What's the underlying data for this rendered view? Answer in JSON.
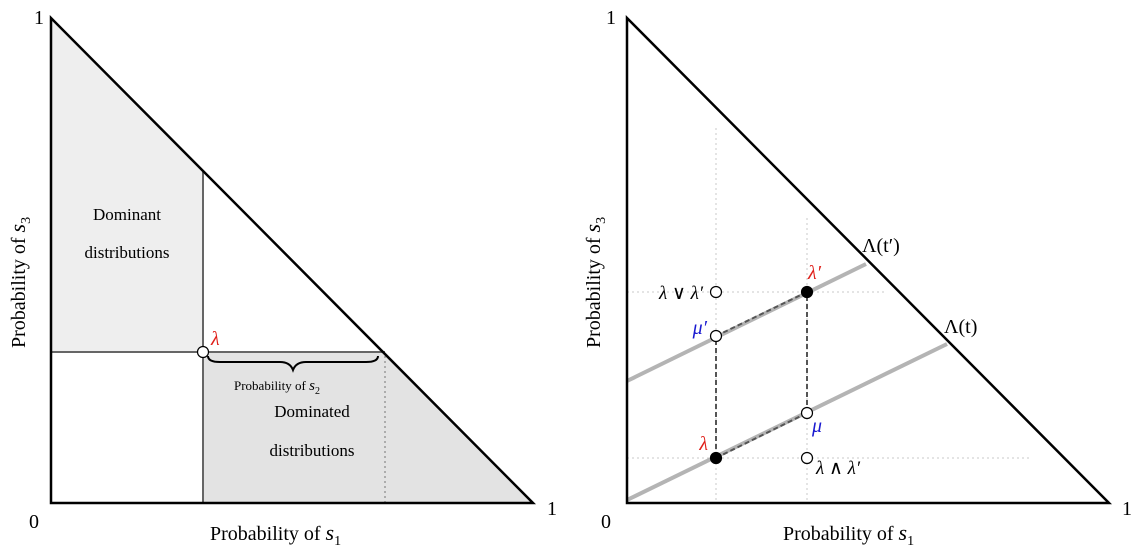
{
  "left_panel": {
    "origin_label": "0",
    "x_max_label": "1",
    "y_max_label": "1",
    "x_axis": {
      "text": "Probability of ",
      "var": "s",
      "sub": "1"
    },
    "y_axis": {
      "text": "Probability of ",
      "var": "s",
      "sub": "3"
    },
    "dominant_region": {
      "line1": "Dominant",
      "line2": "distributions"
    },
    "dominated_region": {
      "line1": "Dominated",
      "line2": "distributions"
    },
    "brace_label": {
      "text": "Probability of ",
      "var": "s",
      "sub": "2"
    },
    "point": {
      "label": "λ"
    }
  },
  "right_panel": {
    "origin_label": "0",
    "x_max_label": "1",
    "y_max_label": "1",
    "x_axis": {
      "text": "Probability of ",
      "var": "s",
      "sub": "1"
    },
    "y_axis": {
      "text": "Probability of ",
      "var": "s",
      "sub": "3"
    },
    "line_upper_label": "Λ(t′)",
    "line_lower_label": "Λ(t)",
    "points": {
      "lambda": "λ",
      "lambda_prime": "λ′",
      "mu": "μ",
      "mu_prime": "μ′",
      "join": "λ ∨ λ′",
      "meet": "λ ∧ λ′"
    }
  },
  "colors": {
    "shade_dominant": "#eeeeee",
    "shade_dominated": "#e3e3e3",
    "lambda": "#e0201a",
    "mu": "#1a1ad0",
    "level_line": "#b4b4b4"
  }
}
